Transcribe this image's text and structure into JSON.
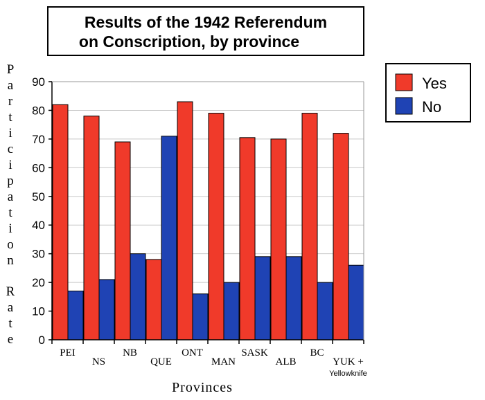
{
  "chart_data": {
    "type": "bar",
    "title_lines": [
      "Results of the 1942 Referendum",
      "on Conscription, by province"
    ],
    "xlabel": "Provinces",
    "ylabel": "Participation Rate",
    "ylim": [
      0,
      90
    ],
    "yticks": [
      0,
      10,
      20,
      30,
      40,
      50,
      60,
      70,
      80,
      90
    ],
    "grid": true,
    "legend_position": "top-right",
    "categories": [
      "PEI",
      "NS",
      "NB",
      "QUE",
      "ONT",
      "MAN",
      "SASK",
      "ALB",
      "BC",
      "YUK + Yellowknife"
    ],
    "category_lines": [
      [
        "PEI"
      ],
      [
        "NS"
      ],
      [
        "NB"
      ],
      [
        "QUE"
      ],
      [
        "ONT"
      ],
      [
        "MAN"
      ],
      [
        "SASK"
      ],
      [
        "ALB"
      ],
      [
        "BC"
      ],
      [
        "YUK +",
        "Yellowknife"
      ]
    ],
    "series": [
      {
        "name": "Yes",
        "color": "#f03a2a",
        "values": [
          82,
          78,
          69,
          28,
          83,
          79,
          70.5,
          70,
          79,
          72
        ]
      },
      {
        "name": "No",
        "color": "#1f43b4",
        "values": [
          17,
          21,
          30,
          71,
          16,
          20,
          29,
          29,
          20,
          26
        ]
      }
    ]
  }
}
